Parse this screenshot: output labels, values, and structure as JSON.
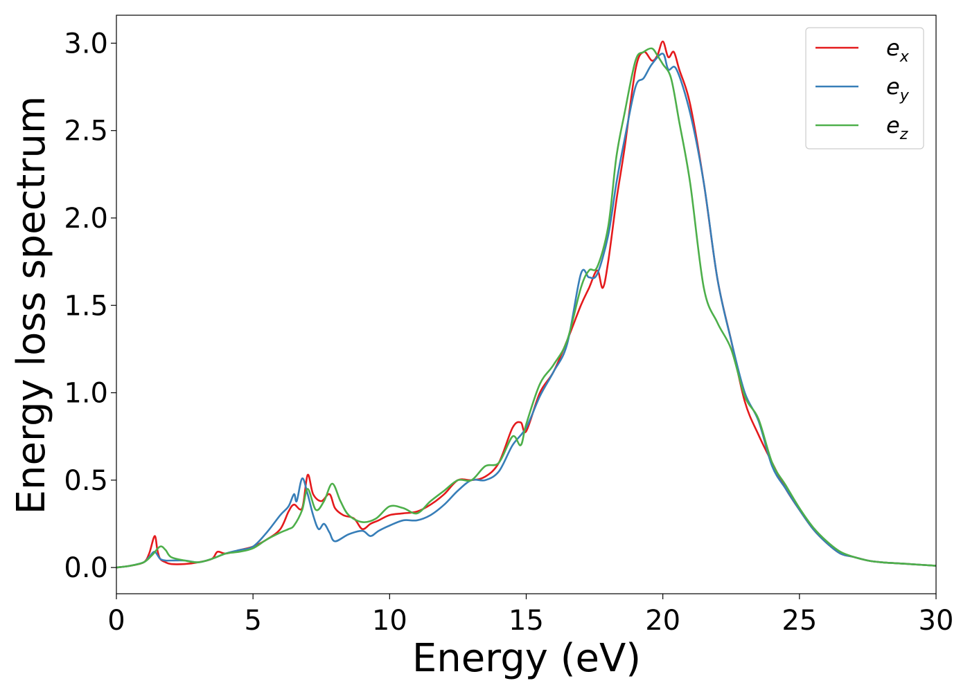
{
  "chart_data": {
    "type": "line",
    "title": "",
    "xlabel": "Energy (eV)",
    "ylabel": "Energy loss spectrum",
    "xlim": [
      0,
      30
    ],
    "ylim": [
      -0.15,
      3.16
    ],
    "xticks": [
      0,
      5,
      10,
      15,
      20,
      25,
      30
    ],
    "yticks": [
      0.0,
      0.5,
      1.0,
      1.5,
      2.0,
      2.5,
      3.0
    ],
    "xtick_labels": [
      "0",
      "5",
      "10",
      "15",
      "20",
      "25",
      "30"
    ],
    "ytick_labels": [
      "0.0",
      "0.5",
      "1.0",
      "1.5",
      "2.0",
      "2.5",
      "3.0"
    ],
    "grid": false,
    "legend_position": "top-right",
    "series": [
      {
        "name": "e_x",
        "label_base": "e",
        "label_sub": "x",
        "color": "#e41a1c",
        "x": [
          0,
          0.5,
          1.0,
          1.2,
          1.4,
          1.5,
          1.6,
          1.8,
          2.0,
          2.5,
          3.0,
          3.5,
          3.7,
          4.0,
          4.5,
          5.0,
          5.5,
          6.0,
          6.3,
          6.5,
          6.8,
          7.0,
          7.2,
          7.5,
          7.8,
          8.0,
          8.3,
          8.7,
          9.0,
          9.3,
          9.6,
          10.0,
          10.5,
          11.0,
          11.5,
          12.0,
          12.5,
          13.0,
          13.5,
          14.0,
          14.5,
          14.8,
          15.0,
          15.5,
          16.0,
          16.5,
          17.0,
          17.3,
          17.6,
          17.8,
          18.0,
          18.3,
          18.6,
          19.0,
          19.3,
          19.6,
          19.8,
          20.0,
          20.2,
          20.4,
          20.6,
          21.0,
          21.5,
          22.0,
          22.5,
          23.0,
          23.5,
          24.0,
          24.5,
          25.0,
          25.5,
          26.0,
          26.5,
          27.0,
          27.5,
          28.0,
          29.0,
          30.0
        ],
        "y": [
          0.0,
          0.01,
          0.03,
          0.08,
          0.18,
          0.1,
          0.05,
          0.03,
          0.02,
          0.02,
          0.03,
          0.05,
          0.09,
          0.08,
          0.1,
          0.12,
          0.16,
          0.22,
          0.32,
          0.36,
          0.34,
          0.53,
          0.42,
          0.38,
          0.42,
          0.34,
          0.3,
          0.28,
          0.22,
          0.25,
          0.27,
          0.3,
          0.31,
          0.32,
          0.36,
          0.42,
          0.5,
          0.5,
          0.52,
          0.6,
          0.8,
          0.83,
          0.78,
          1.0,
          1.12,
          1.3,
          1.5,
          1.6,
          1.7,
          1.6,
          1.75,
          2.1,
          2.4,
          2.85,
          2.95,
          2.9,
          2.93,
          3.01,
          2.92,
          2.95,
          2.85,
          2.65,
          2.2,
          1.65,
          1.3,
          0.95,
          0.76,
          0.6,
          0.45,
          0.33,
          0.22,
          0.14,
          0.08,
          0.06,
          0.04,
          0.03,
          0.02,
          0.01
        ]
      },
      {
        "name": "e_y",
        "label_base": "e",
        "label_sub": "y",
        "color": "#377eb8",
        "x": [
          0,
          0.5,
          1.0,
          1.2,
          1.4,
          1.6,
          1.8,
          2.0,
          2.5,
          3.0,
          3.5,
          4.0,
          4.5,
          5.0,
          5.5,
          6.0,
          6.3,
          6.5,
          6.6,
          6.8,
          7.0,
          7.2,
          7.4,
          7.6,
          7.8,
          8.0,
          8.5,
          9.0,
          9.3,
          9.6,
          10.0,
          10.5,
          11.0,
          11.5,
          12.0,
          12.5,
          13.0,
          13.5,
          14.0,
          14.5,
          15.0,
          15.5,
          16.0,
          16.5,
          17.0,
          17.3,
          17.6,
          18.0,
          18.3,
          18.6,
          19.0,
          19.3,
          19.6,
          20.0,
          20.2,
          20.5,
          21.0,
          21.5,
          22.0,
          22.5,
          23.0,
          23.5,
          24.0,
          24.5,
          25.0,
          25.5,
          26.0,
          26.5,
          27.0,
          27.5,
          28.0,
          29.0,
          30.0
        ],
        "y": [
          0.0,
          0.01,
          0.03,
          0.06,
          0.09,
          0.05,
          0.04,
          0.04,
          0.04,
          0.03,
          0.05,
          0.08,
          0.1,
          0.12,
          0.2,
          0.3,
          0.35,
          0.42,
          0.38,
          0.51,
          0.42,
          0.3,
          0.22,
          0.25,
          0.2,
          0.15,
          0.19,
          0.21,
          0.18,
          0.21,
          0.24,
          0.27,
          0.27,
          0.3,
          0.36,
          0.44,
          0.5,
          0.5,
          0.55,
          0.7,
          0.8,
          0.98,
          1.12,
          1.28,
          1.68,
          1.66,
          1.68,
          1.9,
          2.2,
          2.45,
          2.75,
          2.8,
          2.88,
          2.94,
          2.85,
          2.85,
          2.6,
          2.2,
          1.65,
          1.3,
          1.0,
          0.84,
          0.58,
          0.45,
          0.33,
          0.22,
          0.14,
          0.08,
          0.06,
          0.04,
          0.03,
          0.02,
          0.01
        ]
      },
      {
        "name": "e_z",
        "label_base": "e",
        "label_sub": "z",
        "color": "#4daf4a",
        "x": [
          0,
          0.5,
          1.0,
          1.3,
          1.6,
          1.8,
          2.0,
          2.5,
          3.0,
          3.5,
          4.0,
          4.5,
          5.0,
          5.5,
          6.0,
          6.3,
          6.5,
          6.8,
          7.0,
          7.3,
          7.6,
          7.9,
          8.2,
          8.5,
          9.0,
          9.5,
          10.0,
          10.5,
          11.0,
          11.5,
          12.0,
          12.5,
          13.0,
          13.5,
          14.0,
          14.5,
          14.8,
          15.0,
          15.5,
          16.0,
          16.5,
          17.0,
          17.3,
          17.6,
          18.0,
          18.3,
          18.6,
          19.0,
          19.3,
          19.6,
          19.8,
          20.0,
          20.3,
          20.6,
          21.0,
          21.5,
          22.0,
          22.5,
          23.0,
          23.5,
          24.0,
          24.5,
          25.0,
          25.5,
          26.0,
          26.5,
          27.0,
          27.5,
          28.0,
          29.0,
          30.0
        ],
        "y": [
          0.0,
          0.01,
          0.03,
          0.07,
          0.12,
          0.1,
          0.06,
          0.04,
          0.03,
          0.05,
          0.08,
          0.09,
          0.11,
          0.16,
          0.2,
          0.22,
          0.24,
          0.33,
          0.45,
          0.33,
          0.38,
          0.48,
          0.38,
          0.3,
          0.26,
          0.28,
          0.35,
          0.34,
          0.31,
          0.38,
          0.44,
          0.5,
          0.5,
          0.58,
          0.6,
          0.75,
          0.7,
          0.82,
          1.05,
          1.16,
          1.3,
          1.6,
          1.7,
          1.72,
          1.95,
          2.35,
          2.6,
          2.9,
          2.95,
          2.97,
          2.93,
          2.88,
          2.8,
          2.55,
          2.2,
          1.6,
          1.4,
          1.25,
          0.98,
          0.85,
          0.6,
          0.47,
          0.34,
          0.23,
          0.15,
          0.09,
          0.06,
          0.04,
          0.03,
          0.02,
          0.01
        ]
      }
    ]
  }
}
